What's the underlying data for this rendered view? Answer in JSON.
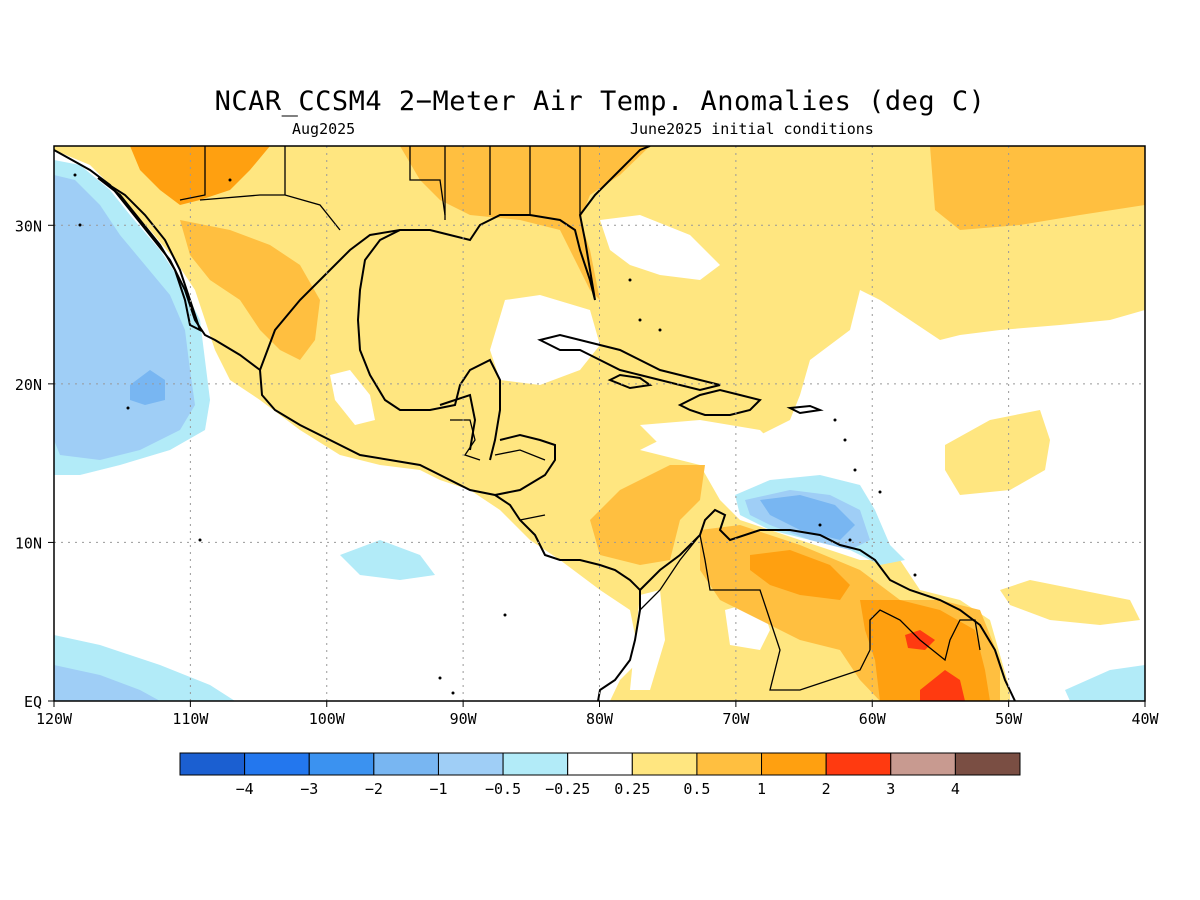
{
  "title": "NCAR_CCSM4 2−Meter Air Temp. Anomalies (deg C)",
  "subtitle_left": "Aug2025",
  "subtitle_right": "June2025 initial conditions",
  "map": {
    "lon_range": [
      -120,
      -40
    ],
    "lat_range": [
      0,
      35
    ],
    "grid": "dotted",
    "lon_labels": [
      "120W",
      "110W",
      "100W",
      "90W",
      "80W",
      "70W",
      "60W",
      "50W",
      "40W"
    ],
    "lat_labels": [
      "EQ",
      "10N",
      "20N",
      "30N"
    ]
  },
  "colorbar": {
    "labels": [
      "−4",
      "−3",
      "−2",
      "−1",
      "−0.5",
      "−0.25",
      "0.25",
      "0.5",
      "1",
      "2",
      "3",
      "4"
    ],
    "colors": [
      "#1b5fd1",
      "#2377ee",
      "#3b92f0",
      "#78b6f2",
      "#9fcef6",
      "#b2ebf8",
      "#ffffff",
      "#ffe680",
      "#ffbf40",
      "#ffa010",
      "#ff3a10",
      "#c89a90",
      "#7a4e43"
    ]
  }
}
